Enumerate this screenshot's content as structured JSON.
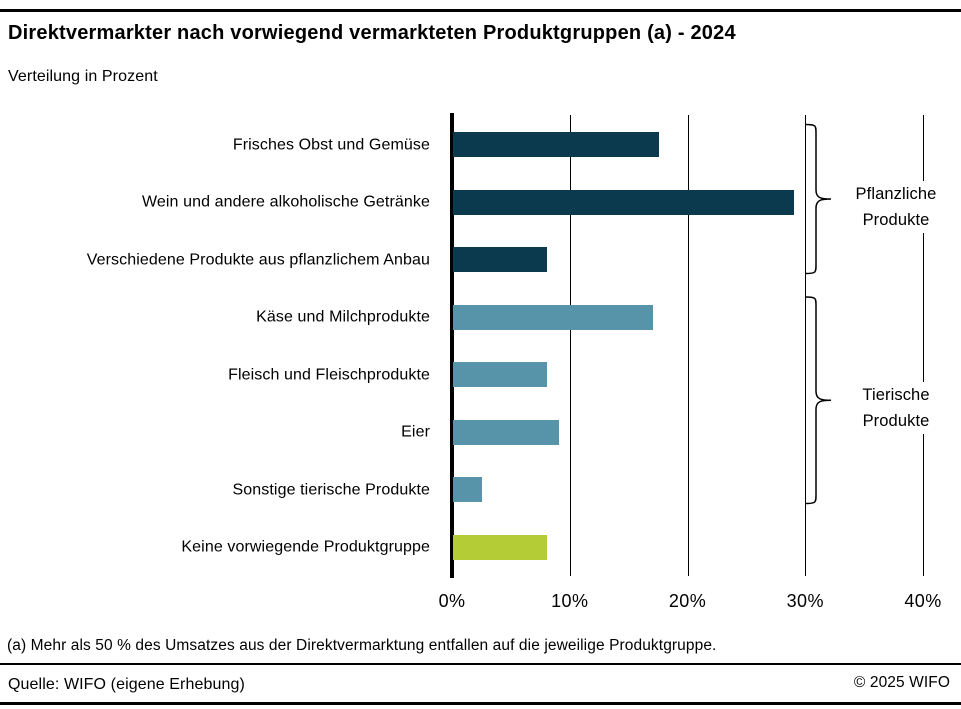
{
  "title": "Direktvermarkter nach vorwiegend vermarkteten Produktgruppen (a) - 2024",
  "subtitle": "Verteilung in Prozent",
  "chart_data": {
    "type": "bar",
    "orientation": "horizontal",
    "title": "Direktvermarkter nach vorwiegend vermarkteten Produktgruppen (a) - 2024",
    "subtitle": "Verteilung in Prozent",
    "categories": [
      "Frisches Obst und Gemüse",
      "Wein und andere alkoholische Getränke",
      "Verschiedene Produkte aus pflanzlichem Anbau",
      "Käse und Milchprodukte",
      "Fleisch und Fleischprodukte",
      "Eier",
      "Sonstige tierische Produkte",
      "Keine vorwiegende Produktgruppe"
    ],
    "values": [
      17.5,
      29,
      8,
      17,
      8,
      9,
      2.5,
      8
    ],
    "unit": "%",
    "xlim": [
      0,
      40
    ],
    "x_ticks": [
      0,
      10,
      20,
      30,
      40
    ],
    "x_tick_labels": [
      "0%",
      "10%",
      "20%",
      "30%",
      "40%"
    ],
    "grid": "vertical",
    "legend_position": "none",
    "bar_colors": [
      "#0b3a4e",
      "#0b3a4e",
      "#0b3a4e",
      "#5894a9",
      "#5894a9",
      "#5894a9",
      "#5894a9",
      "#b4cc35"
    ],
    "groups": [
      {
        "label_lines": [
          "Pflanzliche",
          "Produkte"
        ],
        "from_row": 0,
        "to_row": 2
      },
      {
        "label_lines": [
          "Tierische",
          "Produkte"
        ],
        "from_row": 3,
        "to_row": 6
      }
    ]
  },
  "colors": {
    "plant_products": "#0b3a4e",
    "animal_products": "#5894a9",
    "no_main_group": "#b4cc35",
    "text": "#000000",
    "rule": "#000000"
  },
  "footnote": "(a) Mehr als 50 % des Umsatzes aus der Direktvermarktung entfallen auf die jeweilige Produktgruppe.",
  "source": "Quelle: WIFO (eigene Erhebung)",
  "copyright": "© 2025 WIFO"
}
